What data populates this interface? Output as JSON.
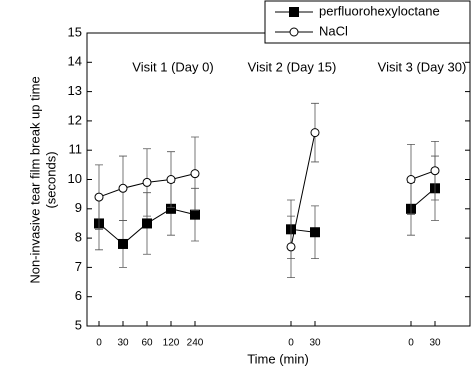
{
  "chart_data": {
    "type": "line",
    "xlabel": "Time (min)",
    "ylabel": [
      "Non-invasive tear film break up time",
      "(seconds)"
    ],
    "annotations": [
      "Visit 1 (Day 0)",
      "Visit 2 (Day 15)",
      "Visit 3 (Day 30)"
    ],
    "categories": [
      "0",
      "30",
      "60",
      "120",
      "240",
      null,
      null,
      null,
      "0",
      "30",
      null,
      null,
      null,
      "0",
      "30"
    ],
    "series": [
      {
        "name": "perfluorohexyloctane",
        "color": "#000000",
        "marker": "square",
        "values": [
          8.5,
          7.8,
          8.5,
          9.0,
          8.8,
          null,
          null,
          null,
          8.3,
          8.2,
          null,
          null,
          null,
          9.0,
          9.7
        ],
        "errors": [
          0.9,
          0.8,
          1.05,
          0.9,
          0.9,
          null,
          null,
          null,
          1.0,
          0.9,
          null,
          null,
          null,
          0.9,
          1.1
        ]
      },
      {
        "name": "NaCl",
        "color": "#000000",
        "marker": "circle",
        "values": [
          9.4,
          9.7,
          9.9,
          10.0,
          10.2,
          null,
          null,
          null,
          7.7,
          11.6,
          null,
          null,
          null,
          10.0,
          10.3
        ],
        "errors": [
          1.1,
          1.1,
          1.15,
          0.95,
          1.25,
          null,
          null,
          null,
          1.05,
          1.0,
          null,
          null,
          null,
          1.2,
          1.0
        ]
      }
    ],
    "ylim": [
      5,
      15
    ],
    "yticks": [
      5,
      6,
      7,
      8,
      9,
      10,
      11,
      12,
      13,
      14,
      15
    ],
    "legend": "top-right"
  }
}
